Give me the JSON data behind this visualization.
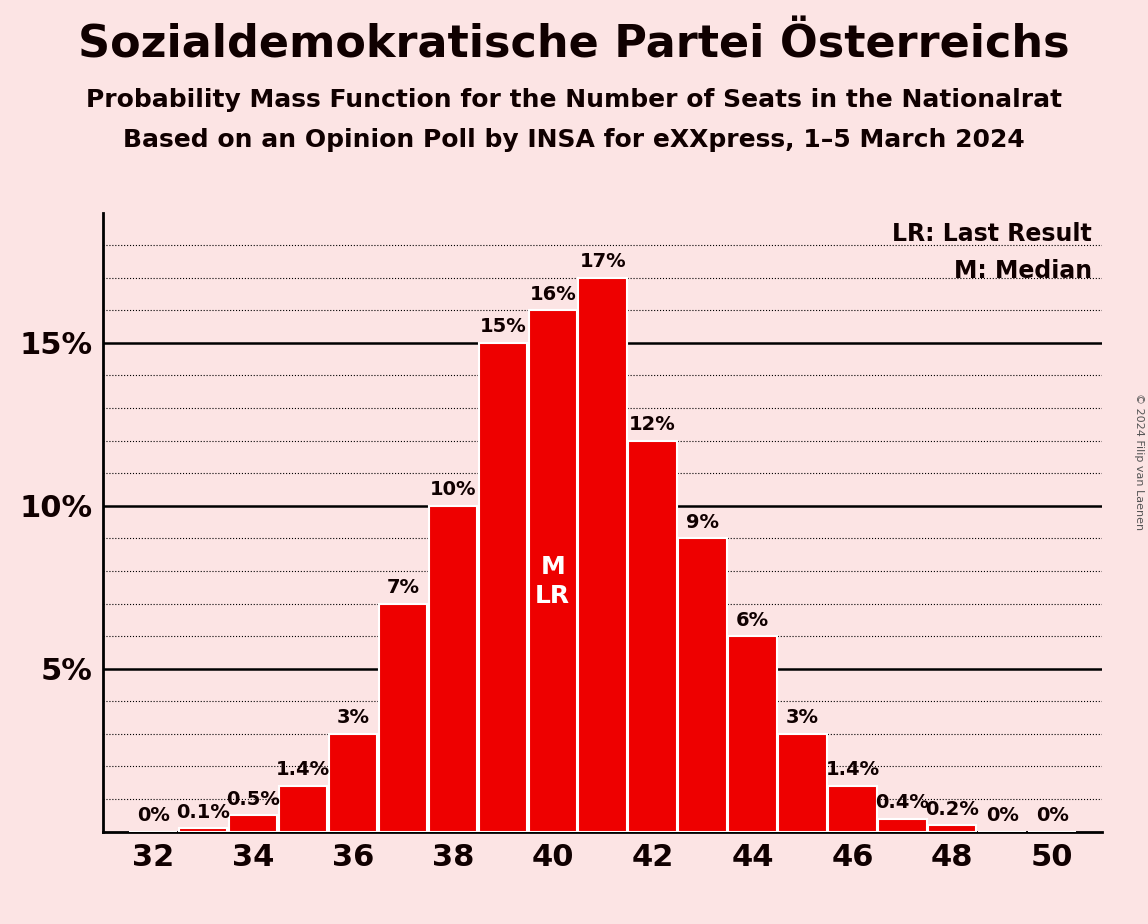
{
  "title": "Sozialdemokratische Partei Österreichs",
  "subtitle1": "Probability Mass Function for the Number of Seats in the Nationalrat",
  "subtitle2": "Based on an Opinion Poll by INSA for eXXpress, 1–5 March 2024",
  "copyright": "© 2024 Filip van Laenen",
  "legend_lr": "LR: Last Result",
  "legend_m": "M: Median",
  "seats": [
    32,
    33,
    34,
    35,
    36,
    37,
    38,
    39,
    40,
    41,
    42,
    43,
    44,
    45,
    46,
    47,
    48,
    49,
    50
  ],
  "probs": [
    0.0,
    0.1,
    0.5,
    1.4,
    3.0,
    7.0,
    10.0,
    15.0,
    16.0,
    17.0,
    12.0,
    9.0,
    6.0,
    3.0,
    1.4,
    0.4,
    0.2,
    0.0,
    0.0
  ],
  "bar_labels": [
    "0%",
    "0.1%",
    "0.5%",
    "1.4%",
    "3%",
    "7%",
    "10%",
    "15%",
    "16%",
    "17%",
    "12%",
    "9%",
    "6%",
    "3%",
    "1.4%",
    "0.4%",
    "0.2%",
    "0%",
    "0%"
  ],
  "bar_color": "#ee0000",
  "bar_edge_color": "#ffffff",
  "bg_color": "#fce4e4",
  "text_color": "#100000",
  "median_seat": 40,
  "last_result_seat": 40,
  "ylim": [
    0,
    19
  ],
  "ytick_vals": [
    0,
    5,
    10,
    15
  ],
  "ytick_labels": [
    "",
    "5%",
    "10%",
    "15%"
  ],
  "xtick_major": [
    32,
    34,
    36,
    38,
    40,
    42,
    44,
    46,
    48,
    50
  ],
  "title_fontsize": 32,
  "subtitle1_fontsize": 18,
  "subtitle2_fontsize": 18,
  "axis_tick_fontsize": 22,
  "bar_label_fontsize": 14,
  "legend_fontsize": 17,
  "ml_fontsize": 18,
  "copyright_fontsize": 8
}
